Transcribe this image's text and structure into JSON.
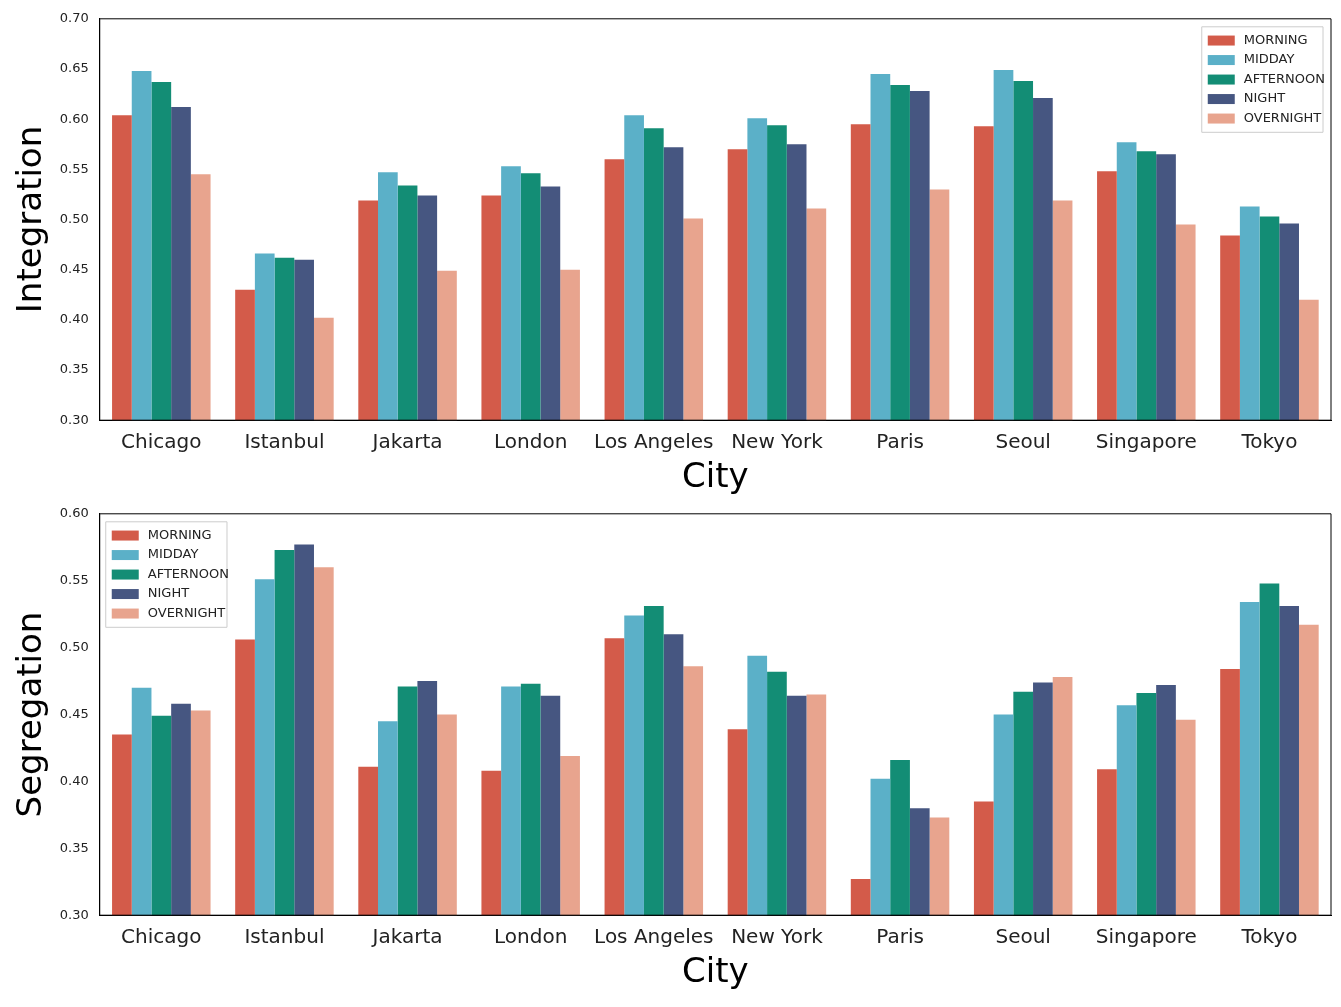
{
  "chart_data": [
    {
      "type": "bar",
      "xlabel": "City",
      "ylabel": "Integration",
      "categories": [
        "Chicago",
        "Istanbul",
        "Jakarta",
        "London",
        "Los Angeles",
        "New York",
        "Paris",
        "Seoul",
        "Singapore",
        "Tokyo"
      ],
      "ylim": [
        0.3,
        0.7
      ],
      "yticks": [
        {
          "value": 0.3,
          "label": "0.30"
        },
        {
          "value": 0.35,
          "label": "0.35"
        },
        {
          "value": 0.4,
          "label": "0.40"
        },
        {
          "value": 0.45,
          "label": "0.45"
        },
        {
          "value": 0.5,
          "label": "0.50"
        },
        {
          "value": 0.55,
          "label": "0.55"
        },
        {
          "value": 0.6,
          "label": "0.60"
        },
        {
          "value": 0.65,
          "label": "0.65"
        },
        {
          "value": 0.7,
          "label": "0.70"
        }
      ],
      "grid": false,
      "legend": "top right",
      "series": [
        {
          "name": "MORNING",
          "color": "#d35b4a",
          "values": [
            0.604,
            0.43,
            0.519,
            0.524,
            0.56,
            0.57,
            0.595,
            0.593,
            0.548,
            0.484
          ]
        },
        {
          "name": "MIDDAY",
          "color": "#5bb0c8",
          "values": [
            0.648,
            0.466,
            0.547,
            0.553,
            0.604,
            0.601,
            0.645,
            0.649,
            0.577,
            0.513
          ]
        },
        {
          "name": "AFTERNOON",
          "color": "#138d75",
          "values": [
            0.637,
            0.462,
            0.534,
            0.546,
            0.591,
            0.594,
            0.634,
            0.638,
            0.568,
            0.503
          ]
        },
        {
          "name": "NIGHT",
          "color": "#465681",
          "values": [
            0.612,
            0.46,
            0.524,
            0.533,
            0.572,
            0.575,
            0.628,
            0.621,
            0.565,
            0.496
          ]
        },
        {
          "name": "OVERNIGHT",
          "color": "#e8a48e",
          "values": [
            0.545,
            0.402,
            0.449,
            0.45,
            0.501,
            0.511,
            0.53,
            0.519,
            0.495,
            0.42
          ]
        }
      ]
    },
    {
      "type": "bar",
      "xlabel": "City",
      "ylabel": "Segregation",
      "categories": [
        "Chicago",
        "Istanbul",
        "Jakarta",
        "London",
        "Los Angeles",
        "New York",
        "Paris",
        "Seoul",
        "Singapore",
        "Tokyo"
      ],
      "ylim": [
        0.3,
        0.6
      ],
      "yticks": [
        {
          "value": 0.3,
          "label": "0.30"
        },
        {
          "value": 0.35,
          "label": "0.35"
        },
        {
          "value": 0.4,
          "label": "0.40"
        },
        {
          "value": 0.45,
          "label": "0.45"
        },
        {
          "value": 0.5,
          "label": "0.50"
        },
        {
          "value": 0.55,
          "label": "0.55"
        },
        {
          "value": 0.6,
          "label": "0.60"
        }
      ],
      "grid": false,
      "legend": "top left",
      "series": [
        {
          "name": "MORNING",
          "color": "#d35b4a",
          "values": [
            0.435,
            0.506,
            0.411,
            0.408,
            0.507,
            0.439,
            0.327,
            0.385,
            0.409,
            0.484
          ]
        },
        {
          "name": "MIDDAY",
          "color": "#5bb0c8",
          "values": [
            0.47,
            0.551,
            0.445,
            0.471,
            0.524,
            0.494,
            0.402,
            0.45,
            0.457,
            0.534
          ]
        },
        {
          "name": "AFTERNOON",
          "color": "#138d75",
          "values": [
            0.449,
            0.573,
            0.471,
            0.473,
            0.531,
            0.482,
            0.416,
            0.467,
            0.466,
            0.548
          ]
        },
        {
          "name": "NIGHT",
          "color": "#465681",
          "values": [
            0.458,
            0.577,
            0.475,
            0.464,
            0.51,
            0.464,
            0.38,
            0.474,
            0.472,
            0.531
          ]
        },
        {
          "name": "OVERNIGHT",
          "color": "#e8a48e",
          "values": [
            0.453,
            0.56,
            0.45,
            0.419,
            0.486,
            0.465,
            0.373,
            0.478,
            0.446,
            0.517
          ]
        }
      ]
    }
  ]
}
